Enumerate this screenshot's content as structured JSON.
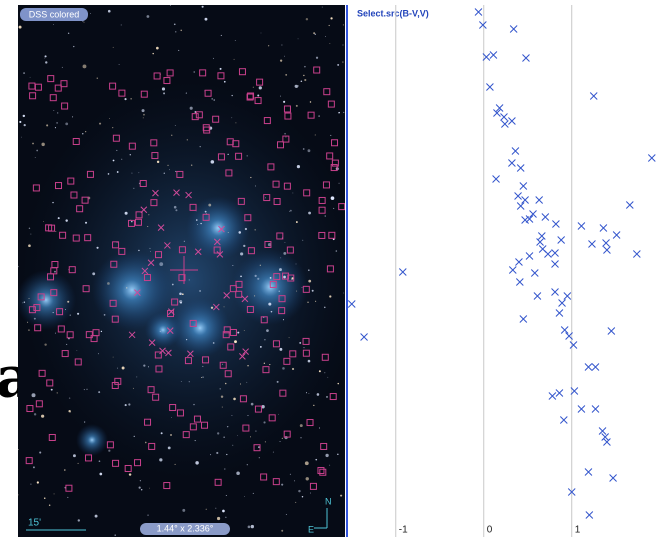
{
  "background_text": "a",
  "image": {
    "survey": "DSS colored",
    "scale": "15'",
    "fov": "1.44° x 2.336°",
    "north": "N",
    "east": "E"
  },
  "chart_data": {
    "type": "scatter",
    "title": "Select.src(B-V,V)",
    "color": "#3355cc",
    "marker": "x",
    "x": [
      -0.06,
      -0.01,
      0.34,
      0.03,
      0.11,
      0.48,
      0.07,
      0.18,
      0.15,
      0.23,
      0.32,
      0.24,
      1.25,
      0.36,
      0.42,
      0.32,
      0.14,
      1.91,
      0.45,
      0.39,
      0.42,
      0.47,
      0.63,
      0.56,
      0.52,
      0.7,
      0.47,
      0.66,
      0.82,
      1.11,
      1.66,
      1.36,
      1.51,
      0.64,
      0.67,
      0.52,
      0.4,
      0.73,
      0.81,
      0.81,
      0.33,
      0.41,
      0.58,
      0.88,
      1.23,
      1.39,
      1.4,
      1.74,
      -0.92,
      0.61,
      0.81,
      0.95,
      0.89,
      0.86,
      0.45,
      0.92,
      0.97,
      1.02,
      1.45,
      -1.5,
      -1.36,
      1.19,
      1.27,
      1.03,
      0.78,
      0.86,
      1.11,
      1.27,
      0.91,
      1.35,
      1.38,
      1.4,
      1.19,
      1.47,
      1.0,
      1.2
    ],
    "values": [
      3.04,
      3.3,
      3.38,
      3.94,
      3.9,
      3.96,
      4.54,
      4.96,
      5.06,
      5.14,
      5.22,
      5.28,
      4.72,
      5.82,
      6.16,
      6.06,
      6.38,
      5.96,
      6.52,
      6.72,
      6.92,
      6.8,
      6.8,
      7.08,
      7.18,
      7.14,
      7.2,
      7.52,
      7.28,
      7.32,
      6.9,
      7.36,
      7.5,
      7.64,
      7.78,
      7.92,
      8.04,
      7.88,
      7.86,
      8.08,
      8.2,
      8.44,
      8.26,
      7.6,
      7.68,
      7.66,
      7.8,
      7.88,
      8.24,
      8.72,
      8.64,
      8.72,
      8.86,
      9.06,
      9.18,
      9.4,
      9.52,
      9.7,
      9.42,
      8.88,
      9.54,
      10.14,
      10.14,
      10.62,
      10.72,
      10.66,
      10.98,
      10.98,
      11.2,
      11.42,
      11.54,
      11.64,
      12.24,
      12.36,
      12.64,
      13.1
    ],
    "xlim": [
      -1.52,
      2.06
    ],
    "ylim": [
      13.54,
      2.9
    ],
    "xticks": [
      -1,
      0,
      1
    ],
    "grid": true
  }
}
